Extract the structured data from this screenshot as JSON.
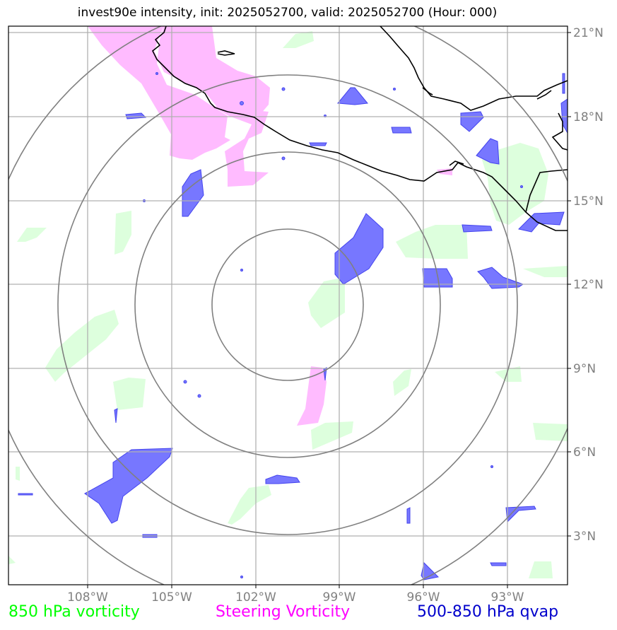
{
  "title": "invest90e intensity, init: 2025052700, valid: 2025052700 (Hour: 000)",
  "legend": [
    {
      "label": "850 hPa vorticity",
      "color": "#00ff00"
    },
    {
      "label": "Steering Vorticity",
      "color": "#ff00ff"
    },
    {
      "label": "500-850 hPa qvap",
      "color": "#0000cc"
    }
  ],
  "axes": {
    "lon_labels": [
      "108°W",
      "105°W",
      "102°W",
      "99°W",
      "96°W",
      "93°W"
    ],
    "lat_labels": [
      "21°N",
      "18°N",
      "15°N",
      "12°N",
      "9°N",
      "6°N",
      "3°N"
    ],
    "lon_range": [
      -110.8,
      -90.8
    ],
    "lat_range": [
      1.3,
      21.3
    ],
    "gridlines": true
  },
  "colors": {
    "vort850_fill": "#ddffdd",
    "steering_fill": "#ffbbff",
    "qvap_fill": "#7777ff",
    "qvap_edge": "#4444ee",
    "range_rings": "#808080",
    "grid": "#b0b0b0",
    "coast": "#000000"
  },
  "storm_center": {
    "lon": -100.9,
    "lat": 11.35
  },
  "range_rings": {
    "count": 4
  }
}
